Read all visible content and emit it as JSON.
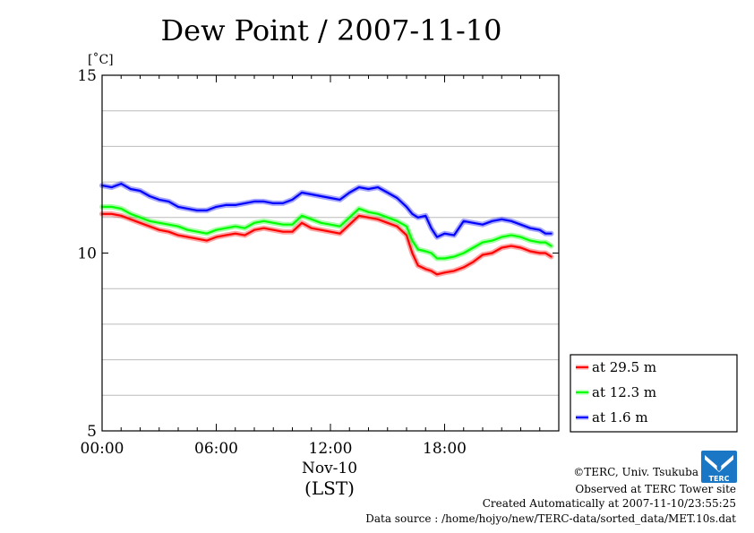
{
  "chart_data": {
    "type": "line",
    "title": "Dew Point / 2007-11-10",
    "ylabel": "[˚C]",
    "xlabel": "(LST)",
    "date_label": "Nov-10",
    "ylim": [
      5,
      15
    ],
    "yticks": [
      {
        "value": 5,
        "label": "5"
      },
      {
        "value": 10,
        "label": "10"
      },
      {
        "value": 15,
        "label": "15"
      }
    ],
    "ygrid": [
      6,
      7,
      8,
      9,
      11,
      12,
      13,
      14
    ],
    "xlim": [
      0,
      24
    ],
    "xticks": [
      {
        "value": 0,
        "label": "00:00"
      },
      {
        "value": 6,
        "label": "06:00"
      },
      {
        "value": 12,
        "label": "12:00"
      },
      {
        "value": 18,
        "label": "18:00"
      }
    ],
    "grid": "horizontal",
    "legend_position": "lower-right outside",
    "series": [
      {
        "name": "at 29.5 m",
        "color": "#ff0000",
        "x": [
          0,
          0.5,
          1,
          1.5,
          2,
          2.5,
          3,
          3.5,
          4,
          4.5,
          5,
          5.5,
          6,
          6.5,
          7,
          7.5,
          8,
          8.5,
          9,
          9.5,
          10,
          10.5,
          11,
          11.5,
          12,
          12.5,
          13,
          13.5,
          14,
          14.5,
          15,
          15.5,
          16,
          16.3,
          16.6,
          17,
          17.3,
          17.6,
          18,
          18.5,
          19,
          19.5,
          20,
          20.5,
          21,
          21.5,
          22,
          22.5,
          23,
          23.3,
          23.6
        ],
        "y": [
          11.1,
          11.1,
          11.05,
          10.95,
          10.85,
          10.75,
          10.65,
          10.6,
          10.5,
          10.45,
          10.4,
          10.35,
          10.45,
          10.5,
          10.55,
          10.5,
          10.65,
          10.7,
          10.65,
          10.6,
          10.6,
          10.85,
          10.7,
          10.65,
          10.6,
          10.55,
          10.8,
          11.05,
          11.0,
          10.95,
          10.85,
          10.75,
          10.5,
          10.0,
          9.65,
          9.55,
          9.5,
          9.4,
          9.45,
          9.5,
          9.6,
          9.75,
          9.95,
          10.0,
          10.15,
          10.2,
          10.15,
          10.05,
          10.0,
          10.0,
          9.9
        ]
      },
      {
        "name": "at 12.3 m",
        "color": "#00ff00",
        "x": [
          0,
          0.5,
          1,
          1.5,
          2,
          2.5,
          3,
          3.5,
          4,
          4.5,
          5,
          5.5,
          6,
          6.5,
          7,
          7.5,
          8,
          8.5,
          9,
          9.5,
          10,
          10.5,
          11,
          11.5,
          12,
          12.5,
          13,
          13.5,
          14,
          14.5,
          15,
          15.5,
          16,
          16.3,
          16.6,
          17,
          17.3,
          17.6,
          18,
          18.5,
          19,
          19.5,
          20,
          20.5,
          21,
          21.5,
          22,
          22.5,
          23,
          23.3,
          23.6
        ],
        "y": [
          11.3,
          11.3,
          11.25,
          11.1,
          11.0,
          10.9,
          10.85,
          10.8,
          10.75,
          10.65,
          10.6,
          10.55,
          10.65,
          10.7,
          10.75,
          10.7,
          10.85,
          10.9,
          10.85,
          10.8,
          10.8,
          11.05,
          10.95,
          10.85,
          10.8,
          10.75,
          11.0,
          11.25,
          11.15,
          11.1,
          11.0,
          10.9,
          10.75,
          10.35,
          10.1,
          10.05,
          10.0,
          9.85,
          9.85,
          9.9,
          10.0,
          10.15,
          10.3,
          10.35,
          10.45,
          10.5,
          10.45,
          10.35,
          10.3,
          10.3,
          10.2
        ]
      },
      {
        "name": "at 1.6 m",
        "color": "#0000ff",
        "x": [
          0,
          0.5,
          1,
          1.5,
          2,
          2.5,
          3,
          3.5,
          4,
          4.5,
          5,
          5.5,
          6,
          6.5,
          7,
          7.5,
          8,
          8.5,
          9,
          9.5,
          10,
          10.5,
          11,
          11.5,
          12,
          12.5,
          13,
          13.5,
          14,
          14.5,
          15,
          15.5,
          16,
          16.3,
          16.6,
          17,
          17.3,
          17.6,
          18,
          18.5,
          19,
          19.5,
          20,
          20.5,
          21,
          21.5,
          22,
          22.5,
          23,
          23.3,
          23.6
        ],
        "y": [
          11.9,
          11.85,
          11.95,
          11.8,
          11.75,
          11.6,
          11.5,
          11.45,
          11.3,
          11.25,
          11.2,
          11.2,
          11.3,
          11.35,
          11.35,
          11.4,
          11.45,
          11.45,
          11.4,
          11.4,
          11.5,
          11.7,
          11.65,
          11.6,
          11.55,
          11.5,
          11.7,
          11.85,
          11.8,
          11.85,
          11.7,
          11.55,
          11.3,
          11.1,
          11.0,
          11.05,
          10.7,
          10.45,
          10.55,
          10.5,
          10.9,
          10.85,
          10.8,
          10.9,
          10.95,
          10.9,
          10.8,
          10.7,
          10.65,
          10.55,
          10.55
        ]
      }
    ]
  },
  "footer": {
    "credit": "©TERC, Univ. Tsukuba",
    "observed": "Observed at TERC Tower site",
    "created": "Created Automatically at 2007-11-10/23:55:25",
    "source": "Data source : /home/hojyo/new/TERC-data/sorted_data/MET.10s.dat",
    "logo_text": "TERC"
  },
  "colors": {
    "grid": "#bbbbbb",
    "axis": "#000000",
    "logo": "#1a77c6",
    "series_glow_opacity": 0.35
  }
}
